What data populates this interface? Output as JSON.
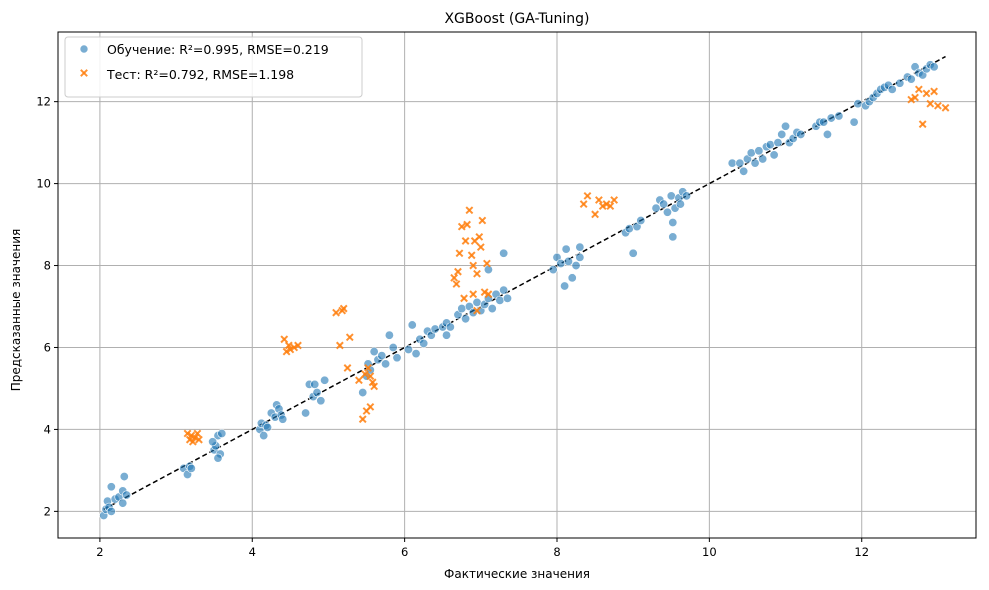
{
  "chart_data": {
    "type": "scatter",
    "title": "XGBoost (GA-Tuning)",
    "xlabel": "Фактические значения",
    "ylabel": "Предсказанные значения",
    "xlim": [
      1.45,
      13.5
    ],
    "ylim": [
      1.35,
      13.7
    ],
    "xticks": [
      2,
      4,
      6,
      8,
      10,
      12
    ],
    "yticks": [
      2,
      4,
      6,
      8,
      10,
      12
    ],
    "grid": true,
    "legend_position": "top-left",
    "reference_line": {
      "style": "dashed",
      "color": "#000000",
      "from": [
        2.05,
        2.05
      ],
      "to": [
        13.1,
        13.1
      ]
    },
    "series": [
      {
        "name": "Обучение: R²=0.995, RMSE=0.219",
        "marker": "circle",
        "color": "#1f77b4",
        "points": [
          [
            2.05,
            1.9
          ],
          [
            2.08,
            2.05
          ],
          [
            2.1,
            2.25
          ],
          [
            2.12,
            2.1
          ],
          [
            2.15,
            2.0
          ],
          [
            2.15,
            2.6
          ],
          [
            2.2,
            2.3
          ],
          [
            2.25,
            2.35
          ],
          [
            2.3,
            2.2
          ],
          [
            2.3,
            2.5
          ],
          [
            2.32,
            2.85
          ],
          [
            2.35,
            2.4
          ],
          [
            3.1,
            3.05
          ],
          [
            3.15,
            2.9
          ],
          [
            3.18,
            3.1
          ],
          [
            3.2,
            3.05
          ],
          [
            3.5,
            3.5
          ],
          [
            3.52,
            3.6
          ],
          [
            3.55,
            3.85
          ],
          [
            3.58,
            3.4
          ],
          [
            3.6,
            3.9
          ],
          [
            3.55,
            3.3
          ],
          [
            3.48,
            3.7
          ],
          [
            4.1,
            4.0
          ],
          [
            4.12,
            4.15
          ],
          [
            4.15,
            3.85
          ],
          [
            4.18,
            4.1
          ],
          [
            4.2,
            4.05
          ],
          [
            4.25,
            4.4
          ],
          [
            4.3,
            4.3
          ],
          [
            4.32,
            4.6
          ],
          [
            4.35,
            4.5
          ],
          [
            4.38,
            4.35
          ],
          [
            4.4,
            4.25
          ],
          [
            4.7,
            4.4
          ],
          [
            4.75,
            5.1
          ],
          [
            4.8,
            4.8
          ],
          [
            4.85,
            4.9
          ],
          [
            4.9,
            4.7
          ],
          [
            4.95,
            5.2
          ],
          [
            4.82,
            5.1
          ],
          [
            5.45,
            4.9
          ],
          [
            5.5,
            5.3
          ],
          [
            5.52,
            5.6
          ],
          [
            5.55,
            5.45
          ],
          [
            5.6,
            5.9
          ],
          [
            5.65,
            5.7
          ],
          [
            5.7,
            5.8
          ],
          [
            5.75,
            5.6
          ],
          [
            5.8,
            6.3
          ],
          [
            5.85,
            6.0
          ],
          [
            5.9,
            5.75
          ],
          [
            6.05,
            5.95
          ],
          [
            6.1,
            6.55
          ],
          [
            6.15,
            5.85
          ],
          [
            6.2,
            6.2
          ],
          [
            6.25,
            6.1
          ],
          [
            6.3,
            6.4
          ],
          [
            6.35,
            6.3
          ],
          [
            6.4,
            6.45
          ],
          [
            6.5,
            6.5
          ],
          [
            6.55,
            6.3
          ],
          [
            6.55,
            6.6
          ],
          [
            6.6,
            6.5
          ],
          [
            6.7,
            6.8
          ],
          [
            6.75,
            6.95
          ],
          [
            6.8,
            6.7
          ],
          [
            6.85,
            7.0
          ],
          [
            6.9,
            6.85
          ],
          [
            6.95,
            7.1
          ],
          [
            7.0,
            6.9
          ],
          [
            7.05,
            7.05
          ],
          [
            7.1,
            7.2
          ],
          [
            7.15,
            6.95
          ],
          [
            7.2,
            7.3
          ],
          [
            7.25,
            7.15
          ],
          [
            7.3,
            7.4
          ],
          [
            7.35,
            7.2
          ],
          [
            7.1,
            7.9
          ],
          [
            7.3,
            8.3
          ],
          [
            7.95,
            7.9
          ],
          [
            8.0,
            8.2
          ],
          [
            8.05,
            8.05
          ],
          [
            8.1,
            7.5
          ],
          [
            8.12,
            8.4
          ],
          [
            8.15,
            8.1
          ],
          [
            8.2,
            7.7
          ],
          [
            8.25,
            8.0
          ],
          [
            8.3,
            8.45
          ],
          [
            8.3,
            8.2
          ],
          [
            8.9,
            8.8
          ],
          [
            8.95,
            8.9
          ],
          [
            9.0,
            8.3
          ],
          [
            9.05,
            8.95
          ],
          [
            9.1,
            9.1
          ],
          [
            9.3,
            9.4
          ],
          [
            9.35,
            9.6
          ],
          [
            9.4,
            9.5
          ],
          [
            9.45,
            9.3
          ],
          [
            9.5,
            9.7
          ],
          [
            9.55,
            9.4
          ],
          [
            9.6,
            9.65
          ],
          [
            9.62,
            9.5
          ],
          [
            9.65,
            9.8
          ],
          [
            9.7,
            9.7
          ],
          [
            9.52,
            8.7
          ],
          [
            9.52,
            9.05
          ],
          [
            10.3,
            10.5
          ],
          [
            10.4,
            10.5
          ],
          [
            10.45,
            10.3
          ],
          [
            10.5,
            10.6
          ],
          [
            10.55,
            10.75
          ],
          [
            10.6,
            10.5
          ],
          [
            10.65,
            10.8
          ],
          [
            10.7,
            10.6
          ],
          [
            10.75,
            10.9
          ],
          [
            10.8,
            10.95
          ],
          [
            10.85,
            10.7
          ],
          [
            10.9,
            11.0
          ],
          [
            10.95,
            11.2
          ],
          [
            11.0,
            11.4
          ],
          [
            11.05,
            11.0
          ],
          [
            11.1,
            11.1
          ],
          [
            11.15,
            11.25
          ],
          [
            11.2,
            11.2
          ],
          [
            11.4,
            11.4
          ],
          [
            11.45,
            11.5
          ],
          [
            11.5,
            11.5
          ],
          [
            11.55,
            11.2
          ],
          [
            11.6,
            11.6
          ],
          [
            11.7,
            11.65
          ],
          [
            11.9,
            11.5
          ],
          [
            11.95,
            11.95
          ],
          [
            12.05,
            11.9
          ],
          [
            12.1,
            12.0
          ],
          [
            12.15,
            12.1
          ],
          [
            12.2,
            12.2
          ],
          [
            12.25,
            12.3
          ],
          [
            12.3,
            12.35
          ],
          [
            12.35,
            12.4
          ],
          [
            12.4,
            12.3
          ],
          [
            12.5,
            12.45
          ],
          [
            12.6,
            12.6
          ],
          [
            12.65,
            12.55
          ],
          [
            12.7,
            12.85
          ],
          [
            12.75,
            12.7
          ],
          [
            12.8,
            12.65
          ],
          [
            12.85,
            12.8
          ],
          [
            12.9,
            12.9
          ],
          [
            12.95,
            12.85
          ]
        ]
      },
      {
        "name": "Тест: R²=0.792, RMSE=1.198",
        "marker": "x",
        "color": "#ff7f0e",
        "points": [
          [
            3.15,
            3.9
          ],
          [
            3.18,
            3.75
          ],
          [
            3.2,
            3.85
          ],
          [
            3.22,
            3.7
          ],
          [
            3.25,
            3.8
          ],
          [
            3.28,
            3.9
          ],
          [
            3.3,
            3.75
          ],
          [
            4.42,
            6.2
          ],
          [
            4.45,
            5.9
          ],
          [
            4.48,
            6.05
          ],
          [
            4.5,
            5.95
          ],
          [
            4.55,
            6.0
          ],
          [
            4.6,
            6.05
          ],
          [
            5.1,
            6.85
          ],
          [
            5.15,
            6.05
          ],
          [
            5.18,
            6.9
          ],
          [
            5.2,
            6.95
          ],
          [
            5.25,
            5.5
          ],
          [
            5.28,
            6.25
          ],
          [
            5.4,
            5.2
          ],
          [
            5.45,
            4.25
          ],
          [
            5.48,
            5.35
          ],
          [
            5.5,
            4.45
          ],
          [
            5.52,
            5.5
          ],
          [
            5.55,
            5.3
          ],
          [
            5.58,
            5.15
          ],
          [
            5.55,
            4.55
          ],
          [
            5.6,
            5.05
          ],
          [
            6.65,
            7.7
          ],
          [
            6.68,
            7.55
          ],
          [
            6.7,
            7.85
          ],
          [
            6.72,
            8.3
          ],
          [
            6.75,
            8.95
          ],
          [
            6.78,
            7.2
          ],
          [
            6.8,
            8.6
          ],
          [
            6.82,
            9.0
          ],
          [
            6.85,
            9.35
          ],
          [
            6.88,
            8.25
          ],
          [
            6.9,
            8.0
          ],
          [
            6.92,
            8.6
          ],
          [
            6.95,
            7.8
          ],
          [
            6.98,
            8.7
          ],
          [
            7.0,
            8.45
          ],
          [
            7.02,
            9.1
          ],
          [
            7.05,
            7.35
          ],
          [
            7.08,
            8.05
          ],
          [
            7.1,
            7.3
          ],
          [
            6.9,
            7.3
          ],
          [
            6.95,
            6.9
          ],
          [
            8.35,
            9.5
          ],
          [
            8.4,
            9.7
          ],
          [
            8.5,
            9.25
          ],
          [
            8.55,
            9.6
          ],
          [
            8.6,
            9.45
          ],
          [
            8.65,
            9.5
          ],
          [
            8.7,
            9.45
          ],
          [
            8.75,
            9.6
          ],
          [
            12.65,
            12.05
          ],
          [
            12.7,
            12.1
          ],
          [
            12.75,
            12.3
          ],
          [
            12.8,
            11.45
          ],
          [
            12.85,
            12.2
          ],
          [
            12.9,
            11.95
          ],
          [
            12.95,
            12.25
          ],
          [
            13.0,
            11.9
          ],
          [
            13.1,
            11.85
          ]
        ]
      }
    ]
  }
}
